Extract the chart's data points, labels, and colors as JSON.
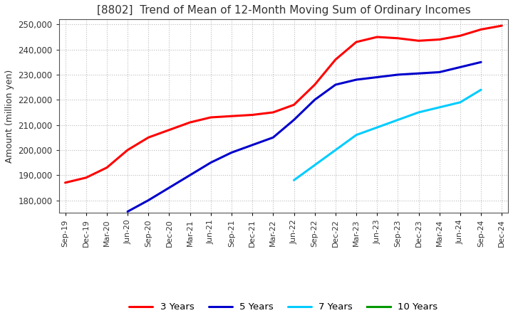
{
  "title": "[8802]  Trend of Mean of 12-Month Moving Sum of Ordinary Incomes",
  "ylabel": "Amount (million yen)",
  "ylim": [
    175000,
    252000
  ],
  "yticks": [
    180000,
    190000,
    200000,
    210000,
    220000,
    230000,
    240000,
    250000
  ],
  "background_color": "#ffffff",
  "grid_color": "#bbbbbb",
  "legend_labels": [
    "3 Years",
    "5 Years",
    "7 Years",
    "10 Years"
  ],
  "legend_colors": [
    "#ff0000",
    "#0000cc",
    "#00ccff",
    "#009900"
  ],
  "x_labels": [
    "Sep-19",
    "Dec-19",
    "Mar-20",
    "Jun-20",
    "Sep-20",
    "Dec-20",
    "Mar-21",
    "Jun-21",
    "Sep-21",
    "Dec-21",
    "Mar-22",
    "Jun-22",
    "Sep-22",
    "Dec-22",
    "Mar-23",
    "Jun-23",
    "Sep-23",
    "Dec-23",
    "Mar-24",
    "Jun-24",
    "Sep-24",
    "Dec-24"
  ],
  "series_3y": [
    187000,
    189000,
    193000,
    200000,
    205000,
    208000,
    211000,
    213000,
    213500,
    214000,
    215000,
    218000,
    226000,
    236000,
    243000,
    245000,
    244500,
    243500,
    244000,
    245500,
    248000,
    249500
  ],
  "series_5y": [
    null,
    null,
    null,
    175500,
    180000,
    185000,
    190000,
    195000,
    199000,
    202000,
    205000,
    212000,
    220000,
    226000,
    228000,
    229000,
    230000,
    230500,
    231000,
    233000,
    235000,
    null
  ],
  "series_7y": [
    null,
    null,
    null,
    null,
    null,
    null,
    null,
    null,
    null,
    null,
    null,
    188000,
    194000,
    200000,
    206000,
    209000,
    212000,
    215000,
    217000,
    219000,
    224000,
    null
  ],
  "series_10y": [
    null,
    null,
    null,
    null,
    null,
    null,
    null,
    null,
    null,
    null,
    null,
    null,
    null,
    null,
    null,
    null,
    null,
    null,
    null,
    null,
    null,
    null
  ]
}
